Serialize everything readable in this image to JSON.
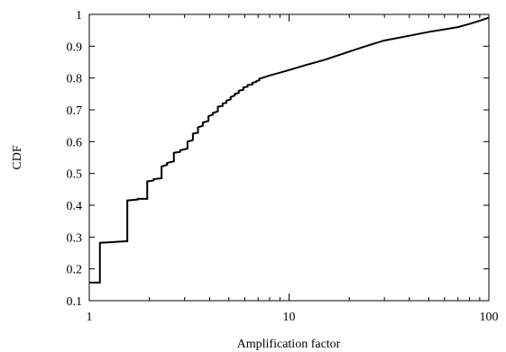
{
  "chart_data": {
    "type": "line",
    "title": "",
    "xlabel": "Amplification factor",
    "ylabel": "CDF",
    "x_scale": "log",
    "xlim": [
      1,
      100
    ],
    "ylim": [
      0.1,
      1.0
    ],
    "grid": false,
    "x_ticks": [
      1,
      10,
      100
    ],
    "x_tick_labels": [
      "1",
      "10",
      "100"
    ],
    "y_ticks": [
      0.1,
      0.2,
      0.3,
      0.4,
      0.5,
      0.6,
      0.7,
      0.8,
      0.9,
      1.0
    ],
    "y_tick_labels": [
      "0.1",
      "0.2",
      "0.3",
      "0.4",
      "0.5",
      "0.6",
      "0.7",
      "0.8",
      "0.9",
      "1"
    ],
    "series": [
      {
        "x": [
          1.0,
          1.13,
          1.13,
          1.55,
          1.55,
          1.75,
          1.75,
          1.95,
          1.95,
          2.1,
          2.1,
          2.3,
          2.3,
          2.45,
          2.45,
          2.65,
          2.65,
          2.85,
          2.85,
          3.1,
          3.1,
          3.3,
          3.3,
          3.5,
          3.5,
          3.7,
          3.7,
          3.95,
          3.95,
          4.15,
          4.15,
          4.4,
          4.4,
          4.65,
          4.65,
          4.85,
          4.85,
          5.1,
          5.1,
          5.35,
          5.35,
          5.6,
          5.6,
          5.9,
          5.9,
          6.2,
          6.2,
          6.55,
          6.55,
          6.85,
          6.85,
          7.1,
          7.1,
          7.3,
          7.3,
          8.0,
          9.0,
          10.0,
          12.0,
          15.0,
          20.0,
          25.0,
          30.0,
          40.0,
          50.0,
          60.0,
          70.0,
          80.0,
          90.0,
          100.0
        ],
        "y": [
          0.157,
          0.157,
          0.282,
          0.287,
          0.415,
          0.418,
          0.42,
          0.42,
          0.475,
          0.478,
          0.482,
          0.485,
          0.522,
          0.527,
          0.533,
          0.538,
          0.565,
          0.568,
          0.573,
          0.578,
          0.6,
          0.605,
          0.625,
          0.628,
          0.645,
          0.65,
          0.66,
          0.665,
          0.68,
          0.685,
          0.69,
          0.695,
          0.71,
          0.712,
          0.72,
          0.722,
          0.728,
          0.733,
          0.74,
          0.745,
          0.75,
          0.753,
          0.76,
          0.763,
          0.77,
          0.773,
          0.778,
          0.78,
          0.785,
          0.788,
          0.79,
          0.793,
          0.798,
          0.8,
          0.8,
          0.808,
          0.817,
          0.825,
          0.84,
          0.857,
          0.883,
          0.903,
          0.918,
          0.933,
          0.945,
          0.953,
          0.96,
          0.97,
          0.98,
          0.99
        ]
      }
    ]
  }
}
